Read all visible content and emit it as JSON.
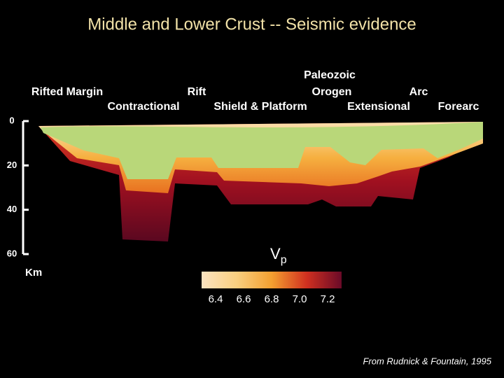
{
  "title": "Middle and Lower Crust -- Seismic evidence",
  "regions": [
    "Paleozoic",
    "Rifted Margin",
    "Rift",
    "Orogen",
    "Arc",
    "Contractional",
    "Shield & Platform",
    "Extensional",
    "Forearc"
  ],
  "depth_axis": {
    "unit": "Km",
    "lim": [
      0,
      60
    ],
    "ticks": [
      0,
      20,
      40,
      60
    ]
  },
  "velocity_scale": {
    "symbol": "V",
    "subscript": "p",
    "lim": [
      6.3,
      7.3
    ],
    "ticks": [
      6.4,
      6.6,
      6.8,
      {
        "value": 7.0,
        "label": "7.0"
      },
      7.2
    ]
  },
  "credit": "From Rudnick & Fountain, 1995"
}
